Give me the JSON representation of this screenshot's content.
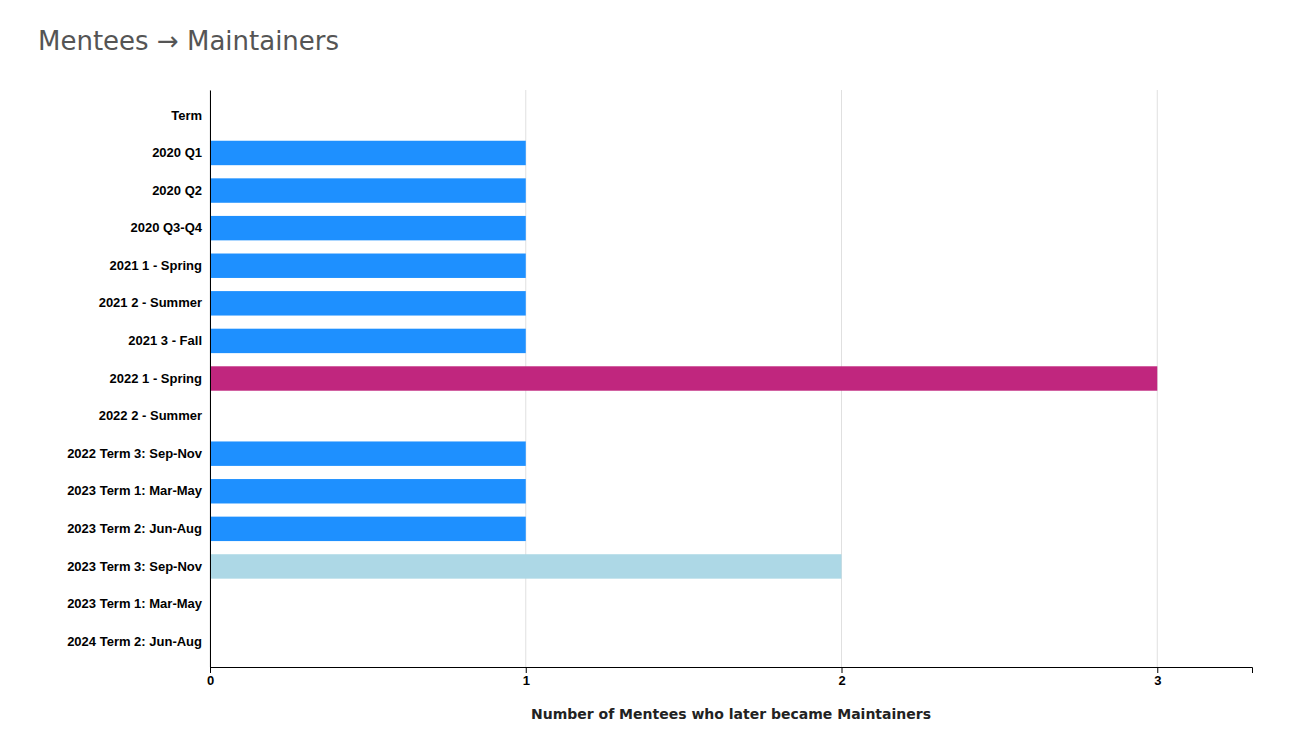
{
  "chart_data": {
    "type": "bar",
    "orientation": "horizontal",
    "title": "Mentees → Maintainers",
    "xlabel": "Number of Mentees who later became Maintainers",
    "categories": [
      "Term",
      "2020 Q1",
      "2020 Q2",
      "2020 Q3-Q4",
      "2021 1 - Spring",
      "2021 2 - Summer",
      "2021 3 - Fall",
      "2022 1 - Spring",
      "2022 2 - Summer",
      "2022 Term 3: Sep-Nov",
      "2023 Term 1: Mar-May",
      "2023 Term 2: Jun-Aug",
      "2023 Term 3: Sep-Nov",
      "2023 Term 1: Mar-May",
      "2024 Term 2: Jun-Aug"
    ],
    "values": [
      0,
      1,
      1,
      1,
      1,
      1,
      1,
      3,
      0,
      1,
      1,
      1,
      2,
      0,
      0
    ],
    "colors": [
      "#ffffff",
      "#1e90ff",
      "#1e90ff",
      "#1e90ff",
      "#1e90ff",
      "#1e90ff",
      "#1e90ff",
      "#c0267e",
      "#ffffff",
      "#1e90ff",
      "#1e90ff",
      "#1e90ff",
      "#add8e6",
      "#ffffff",
      "#ffffff"
    ],
    "xlim": [
      0,
      3.3
    ],
    "xticks": [
      0,
      1,
      2,
      3
    ],
    "grid": true
  }
}
